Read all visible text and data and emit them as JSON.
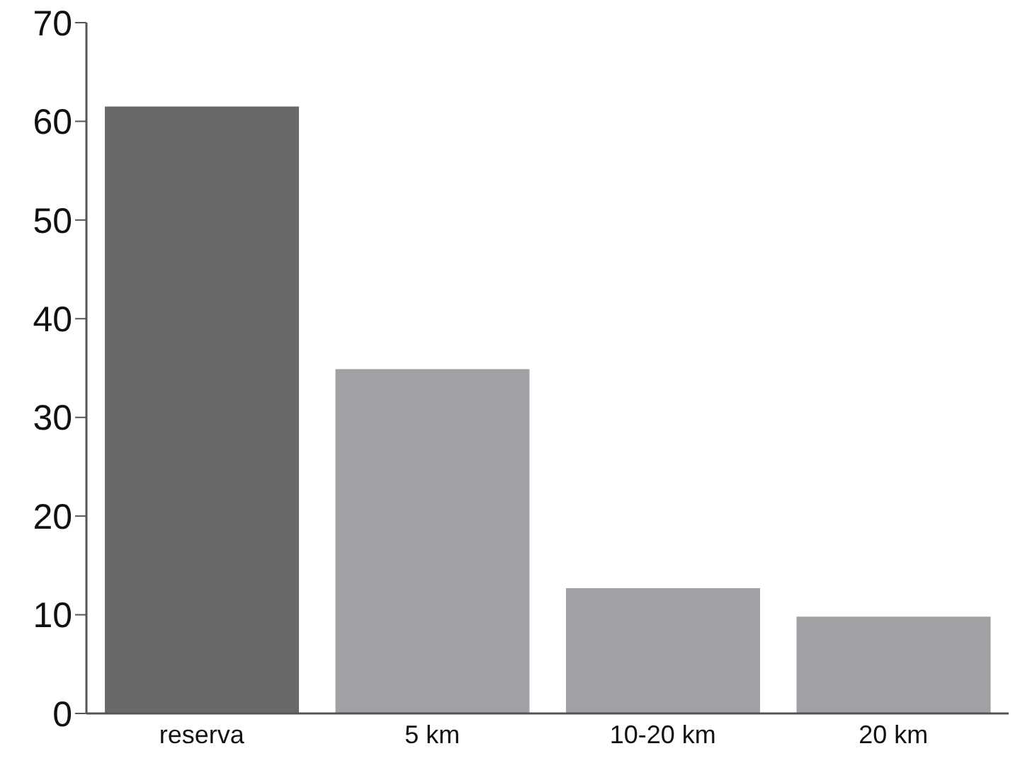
{
  "chart_data": {
    "type": "bar",
    "categories": [
      "reserva",
      "5 km",
      "10-20 km",
      "20 km"
    ],
    "values": [
      61.5,
      34.9,
      12.7,
      9.8
    ],
    "colors": [
      "#68696b",
      "#a0a1a5",
      "#a0a1a5",
      "#a0a1a5"
    ],
    "ylim": [
      0,
      70
    ],
    "yticks": [
      0,
      10,
      20,
      30,
      40,
      50,
      60,
      70
    ],
    "grid": false,
    "legend": false
  }
}
